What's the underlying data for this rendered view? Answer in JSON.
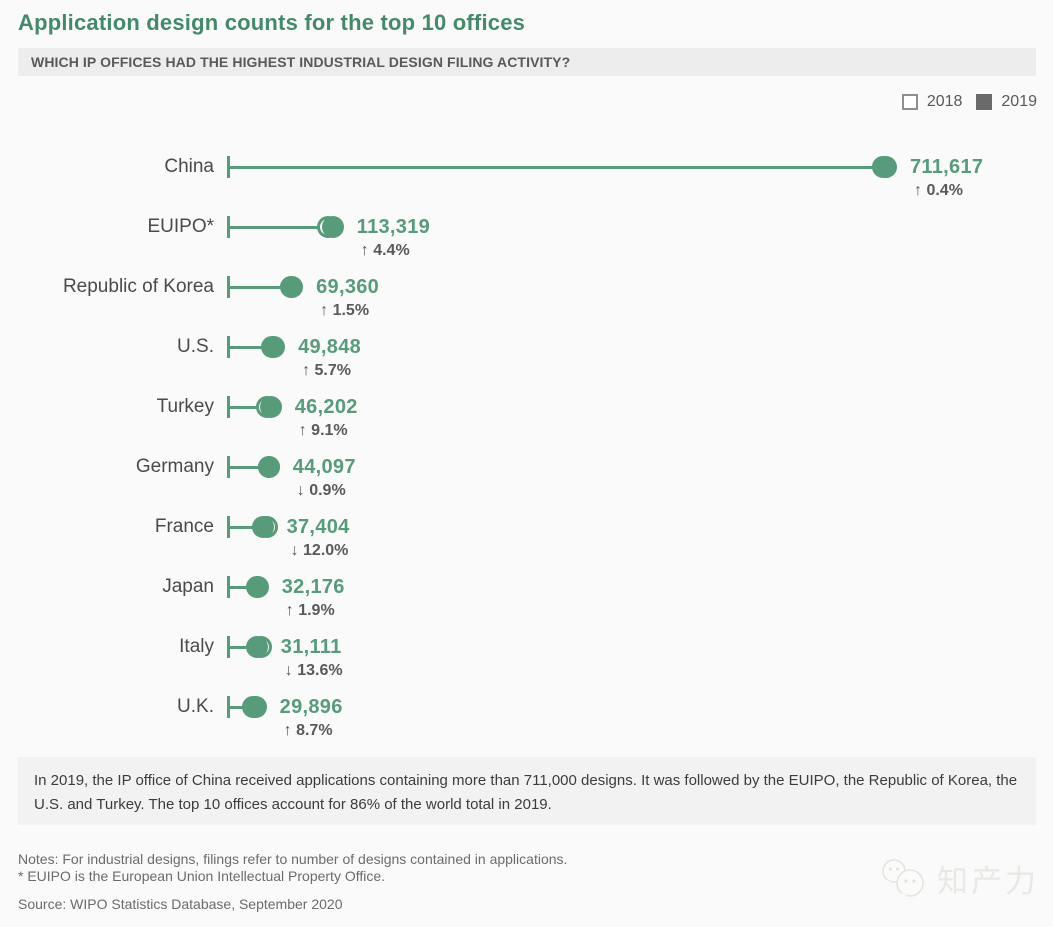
{
  "colors": {
    "accent": "#579b7a",
    "title": "#44896a",
    "row_label": "#4a4a4a",
    "pct_text": "#595959",
    "legend_filled": "#696969",
    "note_text": "#6b6b6b",
    "summary_bg": "#f2f2f2",
    "subtitle_bg": "#ededed",
    "background": "#fafafa"
  },
  "header": {
    "title": "Application design counts for the top 10 offices",
    "subtitle": "WHICH IP OFFICES HAD THE HIGHEST INDUSTRIAL DESIGN FILING ACTIVITY?"
  },
  "chart_data": {
    "type": "dumbbell",
    "title": "Application design counts for the top 10 offices",
    "subtitle": "WHICH IP OFFICES HAD THE HIGHEST INDUSTRIAL DESIGN FILING ACTIVITY?",
    "legend": [
      {
        "label": "2018",
        "marker": "open-square"
      },
      {
        "label": "2019",
        "marker": "filled-square"
      }
    ],
    "legend_position": "top-right",
    "grid": false,
    "xlim": [
      0,
      720000
    ],
    "categories": [
      "China",
      "EUIPO*",
      "Republic of Korea",
      "U.S.",
      "Turkey",
      "Germany",
      "France",
      "Japan",
      "Italy",
      "U.K."
    ],
    "series": [
      {
        "name": "2019",
        "values": [
          711617,
          113319,
          69360,
          49848,
          46202,
          44097,
          37404,
          32176,
          31111,
          29896
        ]
      },
      {
        "name": "change_vs_2018_pct",
        "values": [
          0.4,
          4.4,
          1.5,
          5.7,
          9.1,
          -0.9,
          -12.0,
          1.9,
          -13.6,
          8.7
        ]
      }
    ],
    "value_labels": [
      "711,617",
      "113,319",
      "69,360",
      "49,848",
      "46,202",
      "44,097",
      "37,404",
      "32,176",
      "31,111",
      "29,896"
    ],
    "change_labels": [
      "↑ 0.4%",
      "↑ 4.4%",
      "↑ 1.5%",
      "↑ 5.7%",
      "↑ 9.1%",
      "↓ 0.9%",
      "↓ 12.0%",
      "↑ 1.9%",
      "↓ 13.6%",
      "↑ 8.7%"
    ]
  },
  "summary": "In 2019, the IP office of China received applications containing more than 711,000 designs. It was followed by the EUIPO, the Republic of Korea, the U.S. and Turkey. The top 10 offices account for 86% of the world total in 2019.",
  "notes": [
    "Notes: For industrial designs, filings refer to number of designs contained in applications.",
    "* EUIPO is the European Union Intellectual Property Office."
  ],
  "source": "Source: WIPO Statistics Database, September 2020",
  "watermark": {
    "text": "知产力",
    "icon": "chat-bubbles-icon"
  }
}
